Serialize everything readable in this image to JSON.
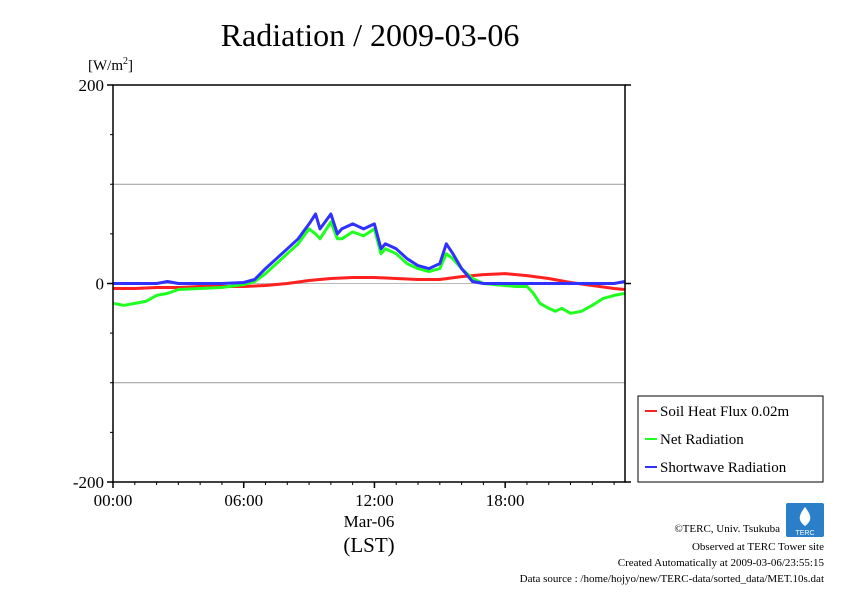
{
  "chart_data": {
    "type": "line",
    "title": "Radiation / 2009-03-06",
    "ylabel_unit": "[W/m",
    "ylabel_unit_sup": "2",
    "ylabel_unit_close": "]",
    "xlabel": "(LST)",
    "x_date_label": "Mar-06",
    "ylim": [
      -200,
      200
    ],
    "yticks": [
      200,
      0,
      -200
    ],
    "yticklabels": [
      "200",
      "0",
      "-200"
    ],
    "xlim": [
      0,
      23.5
    ],
    "xticks": [
      0,
      6,
      12,
      18
    ],
    "xticklabels": [
      "00:00",
      "06:00",
      "12:00",
      "18:00"
    ],
    "grid": true,
    "legend_position": "bottom-right",
    "x_unit": "hour",
    "series": [
      {
        "name": "Soil Heat Flux 0.02m",
        "color": "#ff2020",
        "x": [
          0,
          1,
          2,
          3,
          4,
          5,
          6,
          7,
          8,
          9,
          10,
          11,
          12,
          13,
          14,
          15,
          16,
          17,
          18,
          19,
          20,
          21,
          22,
          23,
          23.5
        ],
        "y": [
          -5,
          -5,
          -4,
          -4,
          -3,
          -3,
          -3,
          -2,
          0,
          3,
          5,
          6,
          6,
          5,
          4,
          4,
          7,
          9,
          10,
          8,
          5,
          1,
          -2,
          -5,
          -6
        ]
      },
      {
        "name": "Net Radiation",
        "color": "#20ff20",
        "x": [
          0,
          0.5,
          1,
          1.5,
          2,
          2.5,
          3,
          4,
          5,
          6,
          6.5,
          7,
          7.5,
          8,
          8.5,
          9,
          9.3,
          9.5,
          10,
          10.3,
          10.5,
          11,
          11.5,
          12,
          12.3,
          12.5,
          13,
          13.5,
          14,
          14.5,
          15,
          15.3,
          15.6,
          16,
          16.5,
          17,
          17.5,
          18,
          18.5,
          19,
          19.3,
          19.6,
          20,
          20.3,
          20.6,
          21,
          21.5,
          22,
          22.5,
          23,
          23.5
        ],
        "y": [
          -20,
          -22,
          -20,
          -18,
          -12,
          -10,
          -6,
          -5,
          -4,
          -1,
          2,
          10,
          20,
          30,
          40,
          55,
          50,
          45,
          62,
          45,
          45,
          52,
          48,
          55,
          30,
          35,
          30,
          20,
          15,
          12,
          15,
          30,
          25,
          15,
          5,
          0,
          -1,
          -2,
          -3,
          -3,
          -10,
          -20,
          -25,
          -28,
          -25,
          -30,
          -28,
          -22,
          -15,
          -12,
          -10
        ]
      },
      {
        "name": "Shortwave Radiation",
        "color": "#3030ff",
        "x": [
          0,
          0.5,
          1,
          2,
          2.5,
          3,
          4,
          5,
          6,
          6.5,
          7,
          7.5,
          8,
          8.5,
          9,
          9.3,
          9.5,
          10,
          10.3,
          10.5,
          11,
          11.5,
          12,
          12.3,
          12.5,
          13,
          13.5,
          14,
          14.5,
          15,
          15.3,
          15.6,
          16,
          16.5,
          17,
          17.5,
          18,
          18.5,
          19,
          20,
          21,
          22,
          23,
          23.5
        ],
        "y": [
          0,
          0,
          0,
          0,
          2,
          0,
          0,
          0,
          1,
          4,
          15,
          25,
          35,
          45,
          60,
          70,
          55,
          70,
          50,
          55,
          60,
          55,
          60,
          35,
          40,
          35,
          25,
          18,
          15,
          20,
          40,
          30,
          15,
          2,
          0,
          0,
          0,
          0,
          0,
          0,
          0,
          0,
          0,
          2
        ]
      }
    ]
  },
  "footer": {
    "copyright": "©TERC, Univ. Tsukuba",
    "observed": "Observed at TERC Tower site",
    "created": "Created Automatically at 2009-03-06/23:55:15",
    "source": "Data source : /home/hojyo/new/TERC-data/sorted_data/MET.10s.dat",
    "logo_text": "TERC"
  }
}
